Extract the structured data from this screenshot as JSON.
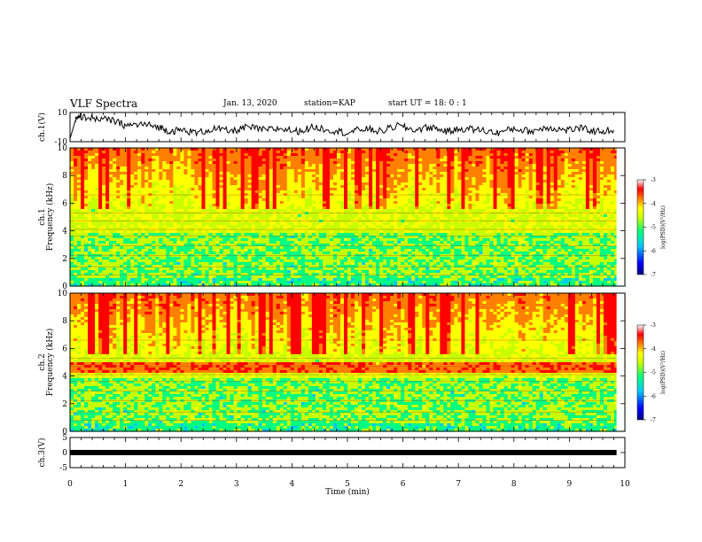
{
  "header": {
    "title": "VLF Spectra",
    "date": "Jan. 13, 2020",
    "station": "station=KAP",
    "start_ut": "start UT = 18: 0 : 1"
  },
  "chart_data": [
    {
      "type": "line",
      "panel": "ch1-waveform",
      "ylabel": "ch.1(V)",
      "ylim": [
        -10,
        10
      ],
      "yticks": [
        "10",
        "-10"
      ],
      "x": [
        0,
        0.1,
        0.2,
        0.5,
        0.8,
        1.0,
        1.3,
        1.6,
        1.8,
        2.0,
        2.3,
        2.6,
        2.9,
        3.2,
        3.5,
        3.8,
        4.1,
        4.4,
        4.7,
        5.0,
        5.3,
        5.6,
        5.9,
        6.2,
        6.5,
        6.8,
        7.1,
        7.4,
        7.7,
        8.0,
        8.3,
        8.6,
        8.9,
        9.2,
        9.5,
        9.8
      ],
      "values": [
        -8,
        5,
        7,
        6,
        4,
        1,
        2,
        0,
        -3,
        -2,
        -4,
        -1,
        -3,
        0,
        -2,
        -1,
        -3,
        0,
        -2,
        -4,
        -1,
        -3,
        1,
        -2,
        0,
        -3,
        -1,
        -2,
        -4,
        -1,
        -3,
        0,
        -2,
        -1,
        -3,
        -2
      ]
    },
    {
      "type": "heatmap",
      "panel": "ch1-spectrogram",
      "ylabel": "ch.1\nFrequency (kHz)",
      "ylim": [
        0,
        10
      ],
      "yticks": [
        "0",
        "2",
        "4",
        "6",
        "8",
        "10"
      ],
      "colorbar": {
        "label": "log(PSD)(V²/Hz)",
        "range": [
          -7,
          -3
        ],
        "ticks": [
          "-3",
          "-4",
          "-5",
          "-6",
          "-7"
        ]
      }
    },
    {
      "type": "heatmap",
      "panel": "ch2-spectrogram",
      "ylabel": "ch.2\nFrequency (kHz)",
      "ylim": [
        0,
        10
      ],
      "yticks": [
        "0",
        "2",
        "4",
        "6",
        "8",
        "10"
      ],
      "colorbar": {
        "label": "log(PSD)(V²/Hz)",
        "range": [
          -7,
          -3
        ],
        "ticks": [
          "-3",
          "-4",
          "-5",
          "-6",
          "-7"
        ]
      }
    },
    {
      "type": "line",
      "panel": "ch3-waveform",
      "ylabel": "ch.3(V)",
      "ylim": [
        -5,
        5
      ],
      "yticks": [
        "5",
        "0",
        "-5"
      ],
      "x": [
        0,
        9.85
      ],
      "values": [
        0,
        0
      ]
    }
  ],
  "xaxis": {
    "label": "Time (min)",
    "range": [
      0,
      10
    ],
    "ticks": [
      "0",
      "1",
      "2",
      "3",
      "4",
      "5",
      "6",
      "7",
      "8",
      "9",
      "10"
    ]
  },
  "colors": {
    "scale": [
      "#000080",
      "#0000ff",
      "#00c8ff",
      "#00ff80",
      "#c8ff00",
      "#ffff00",
      "#ff8000",
      "#ff0000",
      "#ffffff"
    ]
  }
}
